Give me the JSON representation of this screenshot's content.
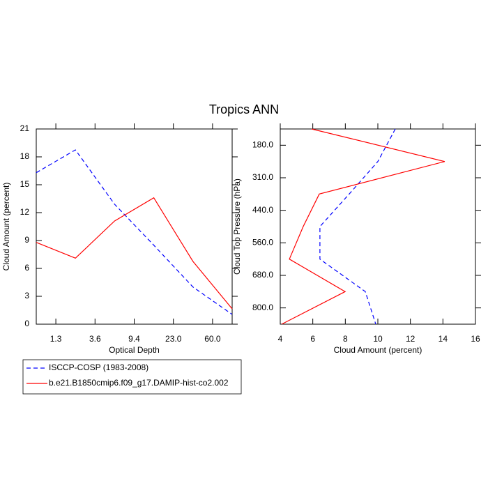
{
  "title": "Tropics ANN",
  "chart_data": [
    {
      "type": "line",
      "orientation": "vertical",
      "xlabel": "Optical Depth",
      "ylabel": "Cloud Amount (percent)",
      "x": [
        0,
        1,
        2,
        3,
        4,
        5
      ],
      "xlim": [
        0,
        5
      ],
      "xticks": [
        {
          "value": 0.5,
          "label": "1.3"
        },
        {
          "value": 1.5,
          "label": "3.6"
        },
        {
          "value": 2.5,
          "label": "9.4"
        },
        {
          "value": 3.5,
          "label": "23.0"
        },
        {
          "value": 4.5,
          "label": "60.0"
        }
      ],
      "ylim": [
        0,
        21
      ],
      "yticks": [
        0,
        3,
        6,
        9,
        12,
        15,
        18,
        21
      ],
      "series": [
        {
          "name": "ISCCP-COSP (1983-2008)",
          "color": "#0000ff",
          "dash": true,
          "values": [
            16.3,
            18.75,
            12.9,
            8.5,
            4.0,
            1.05
          ]
        },
        {
          "name": "b.e21.B1850cmip6.f09_g17.DAMIP-hist-co2.002",
          "color": "#ff0000",
          "dash": false,
          "values": [
            8.8,
            7.1,
            11.1,
            13.6,
            6.75,
            1.65
          ]
        }
      ]
    },
    {
      "type": "line",
      "orientation": "horizontal",
      "xlabel": "Cloud Amount (percent)",
      "ylabel": "Cloud Top Pressure (hPa)",
      "y": [
        0,
        1,
        2,
        3,
        4,
        5,
        6
      ],
      "ylim": [
        0,
        6
      ],
      "yticks": [
        {
          "value": 0.5,
          "label": "180.0"
        },
        {
          "value": 1.5,
          "label": "310.0"
        },
        {
          "value": 2.5,
          "label": "440.0"
        },
        {
          "value": 3.5,
          "label": "560.0"
        },
        {
          "value": 4.5,
          "label": "680.0"
        },
        {
          "value": 5.5,
          "label": "800.0"
        }
      ],
      "xlim": [
        4,
        16
      ],
      "xticks": [
        4,
        6,
        8,
        10,
        12,
        14,
        16
      ],
      "series": [
        {
          "color": "#0000ff",
          "dash": true,
          "values": [
            11.07,
            10.0,
            8.24,
            6.44,
            6.44,
            9.23,
            9.87
          ]
        },
        {
          "color": "#ff0000",
          "dash": false,
          "values": [
            5.93,
            14.11,
            6.4,
            5.41,
            4.56,
            7.99,
            4.09
          ]
        }
      ]
    }
  ]
}
